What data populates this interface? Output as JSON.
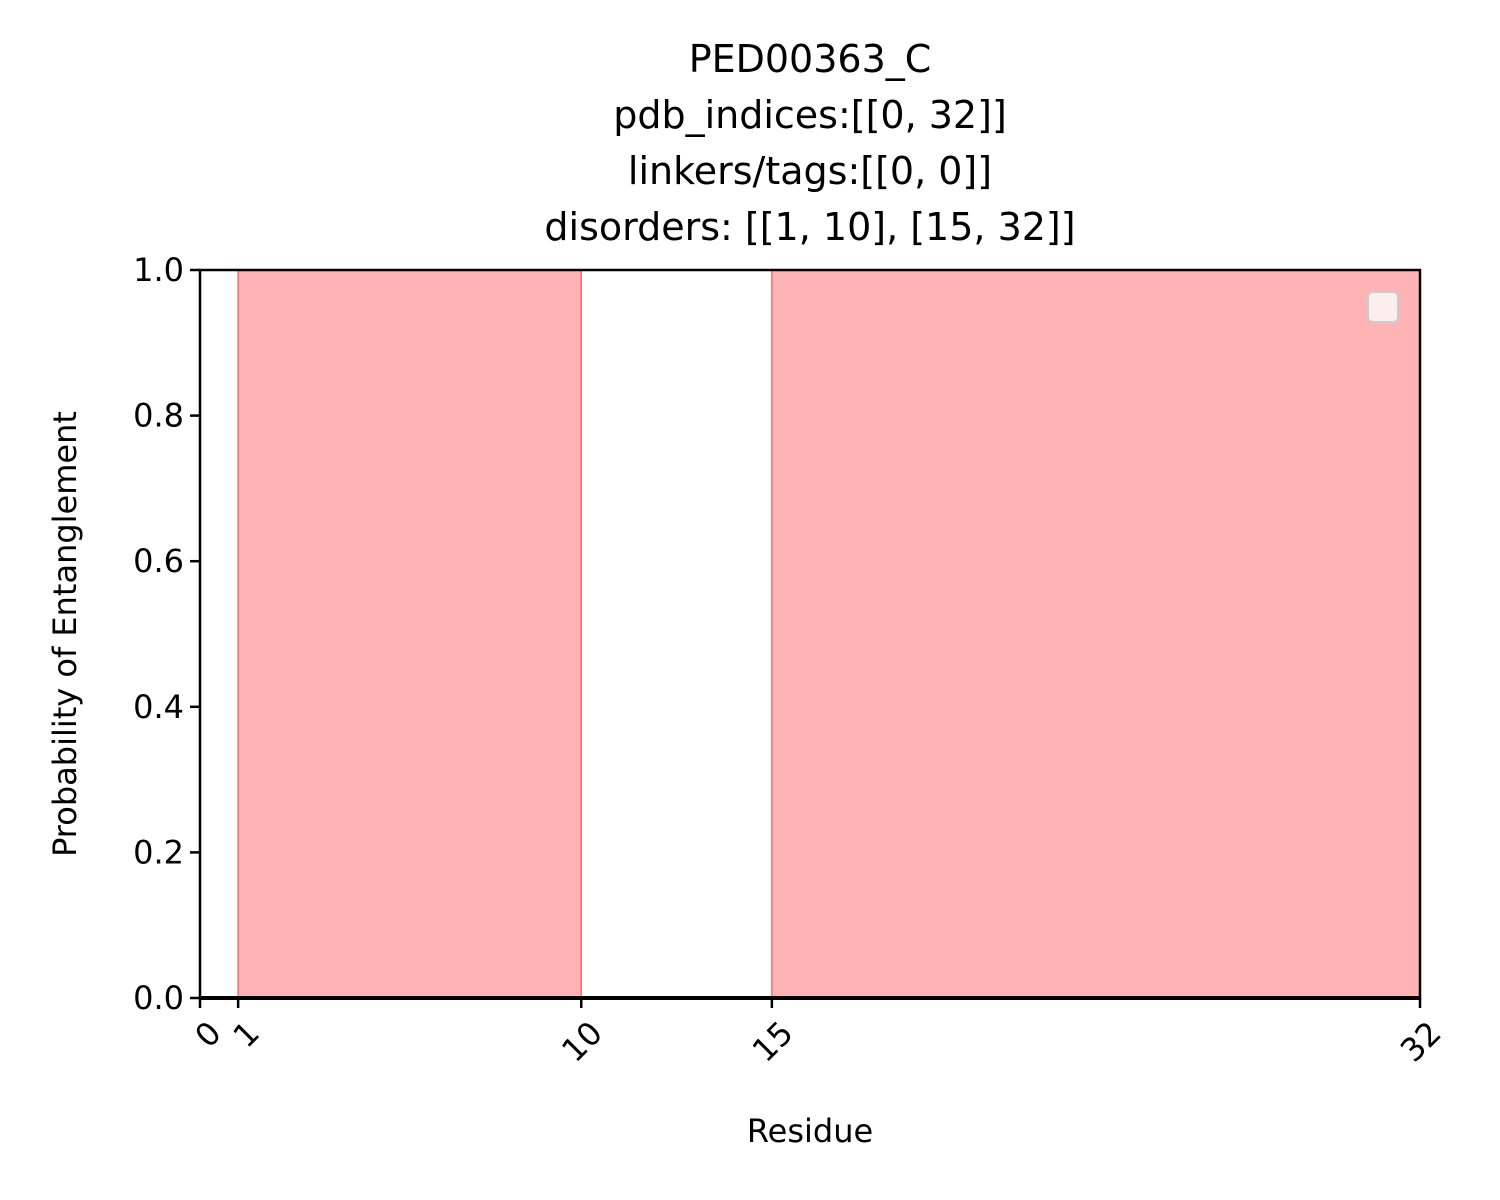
{
  "chart_data": {
    "type": "area",
    "title": [
      "PED00363_C",
      "pdb_indices:[[0, 32]]",
      "linkers/tags:[[0, 0]]",
      "disorders: [[1, 10], [15, 32]]"
    ],
    "xlabel": "Residue",
    "ylabel": "Probability of Entanglement",
    "xlim": [
      0,
      32
    ],
    "ylim": [
      0,
      1
    ],
    "x_ticks": [
      0,
      1,
      10,
      15,
      32
    ],
    "y_ticks": [
      0.0,
      0.2,
      0.4,
      0.6,
      0.8,
      1.0
    ],
    "y_tick_labels": [
      "0.0",
      "0.2",
      "0.4",
      "0.6",
      "0.8",
      "1.0"
    ],
    "disordered_regions": [
      [
        1,
        10
      ],
      [
        15,
        32
      ]
    ],
    "series": [
      {
        "x": [
          0,
          32
        ],
        "values": [
          0,
          0
        ]
      }
    ],
    "region_color": "#ffb3b5",
    "region_edge_color": "#ff6b6b",
    "legend": "top-right",
    "grid": false
  }
}
